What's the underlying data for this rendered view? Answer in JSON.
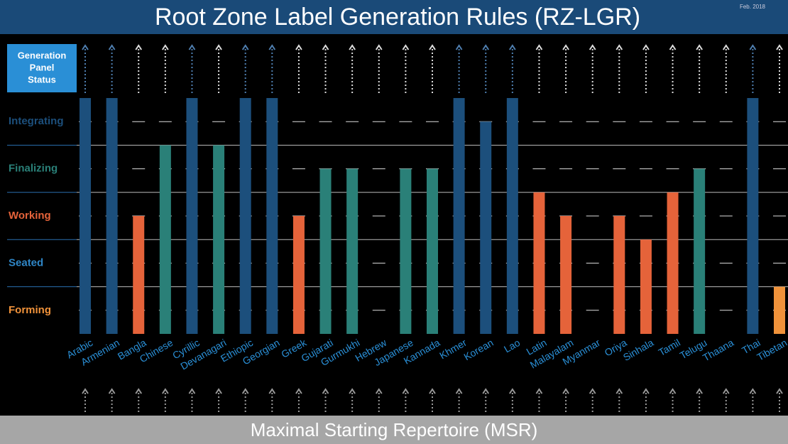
{
  "chart_data": {
    "type": "bar",
    "title": "Root Zone Label Generation Rules (RZ-LGR)",
    "date": "Feb. 2018",
    "status_heading": [
      "Generation",
      "Panel",
      "Status"
    ],
    "footer": "Maximal Starting Repertoire (MSR)",
    "levels": [
      {
        "name": "Forming",
        "color": "#f0923a"
      },
      {
        "name": "Seated",
        "color": "#2f86c6"
      },
      {
        "name": "Working",
        "color": "#e5633a"
      },
      {
        "name": "Finalizing",
        "color": "#2a8078"
      },
      {
        "name": "Integrating",
        "color": "#1c4f7c"
      }
    ],
    "ylim": [
      0,
      10
    ],
    "categories": [
      "Arabic",
      "Armenian",
      "Bangla",
      "Chinese",
      "Cyrillic",
      "Devanagari",
      "Ethiopic",
      "Georgian",
      "Greek",
      "Gujarati",
      "Gurmukhi",
      "Hebrew",
      "Japanese",
      "Kannada",
      "Khmer",
      "Korean",
      "Lao",
      "Latin",
      "Malayalam",
      "Myanmar",
      "Oriya",
      "Sinhala",
      "Tamil",
      "Telugu",
      "Thaana",
      "Thai",
      "Tibetan"
    ],
    "values": [
      10,
      10,
      5,
      8,
      10,
      8,
      10,
      10,
      5,
      7,
      7,
      0,
      7,
      7,
      10,
      9,
      10,
      6,
      5,
      0,
      5,
      4,
      6,
      7,
      0,
      10,
      2
    ],
    "colors": [
      "#1c4f7c",
      "#1c4f7c",
      "#e5633a",
      "#2a8078",
      "#1c4f7c",
      "#2a8078",
      "#1c4f7c",
      "#1c4f7c",
      "#e5633a",
      "#2a8078",
      "#2a8078",
      "#2a8078",
      "#2a8078",
      "#2a8078",
      "#1c4f7c",
      "#1c4f7c",
      "#1c4f7c",
      "#e5633a",
      "#e5633a",
      "#e5633a",
      "#e5633a",
      "#e5633a",
      "#e5633a",
      "#2a8078",
      "#2a8078",
      "#1c4f7c",
      "#f0923a"
    ]
  }
}
